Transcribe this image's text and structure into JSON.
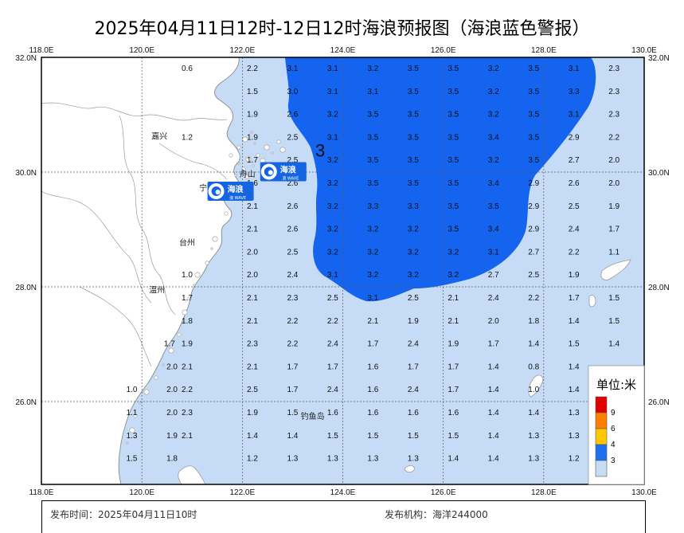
{
  "title": "2025年04月11日12时-12日12时海浪预报图（海浪蓝色警报）",
  "axes": {
    "lon_labels": [
      "118.0E",
      "120.0E",
      "122.0E",
      "124.0E",
      "126.0E",
      "128.0E",
      "130.0E"
    ],
    "lat_labels": [
      "32.0N",
      "30.0N",
      "28.0N",
      "26.0N"
    ]
  },
  "cities": [
    {
      "name": "嘉兴",
      "lon": 120.35,
      "lat": 30.63
    },
    {
      "name": "舟山",
      "lon": 122.1,
      "lat": 29.97
    },
    {
      "name": "宁波",
      "lon": 121.3,
      "lat": 29.73
    },
    {
      "name": "台州",
      "lon": 120.9,
      "lat": 28.78
    },
    {
      "name": "温州",
      "lon": 120.3,
      "lat": 27.95
    },
    {
      "name": "钓鱼岛",
      "lon": 123.4,
      "lat": 25.75
    }
  ],
  "warning_badges": [
    {
      "label": "海浪",
      "sub": "浪 WAVE",
      "lon": 122.8,
      "lat": 30.02
    },
    {
      "label": "海浪",
      "sub": "浪 WAVE",
      "lon": 121.75,
      "lat": 29.68
    }
  ],
  "contour_label": {
    "text": "3",
    "lon": 123.55,
    "lat": 30.38
  },
  "wave_values": {
    "lons": [
      120.9,
      122.2,
      123.0,
      123.8,
      124.6,
      125.4,
      126.2,
      127.0,
      127.8,
      128.6,
      129.4
    ],
    "rows": [
      {
        "lat": 31.82,
        "vals": [
          "0.6",
          "2.2",
          "3.1",
          "3.1",
          "3.2",
          "3.5",
          "3.5",
          "3.2",
          "3.5",
          "3.1",
          "2.3"
        ]
      },
      {
        "lat": 31.42,
        "vals": [
          "",
          "1.5",
          "3.0",
          "3.1",
          "3.1",
          "3.5",
          "3.5",
          "3.2",
          "3.5",
          "3.3",
          "2.3"
        ]
      },
      {
        "lat": 31.02,
        "vals": [
          "",
          "1.9",
          "2.6",
          "3.2",
          "3.5",
          "3.5",
          "3.5",
          "3.2",
          "3.5",
          "3.1",
          "2.3"
        ]
      },
      {
        "lat": 30.62,
        "vals": [
          "1.2",
          "1.9",
          "2.5",
          "3.1",
          "3.5",
          "3.5",
          "3.5",
          "3.4",
          "3.5",
          "2.9",
          "2.2"
        ]
      },
      {
        "lat": 30.22,
        "vals": [
          "",
          "1.7",
          "2.5",
          "3.2",
          "3.5",
          "3.5",
          "3.5",
          "3.2",
          "3.5",
          "2.7",
          "2.0"
        ]
      },
      {
        "lat": 29.82,
        "vals": [
          "",
          "1.6",
          "2.6",
          "3.2",
          "3.5",
          "3.5",
          "3.5",
          "3.4",
          "2.9",
          "2.6",
          "2.0"
        ]
      },
      {
        "lat": 29.42,
        "vals": [
          "",
          "2.1",
          "2.6",
          "3.2",
          "3.3",
          "3.3",
          "3.5",
          "3.5",
          "2.9",
          "2.5",
          "1.9"
        ]
      },
      {
        "lat": 29.02,
        "vals": [
          "",
          "2.1",
          "2.6",
          "3.2",
          "3.2",
          "3.2",
          "3.5",
          "3.4",
          "2.9",
          "2.4",
          "1.7"
        ]
      },
      {
        "lat": 28.62,
        "vals": [
          "",
          "2.0",
          "2.5",
          "3.2",
          "3.2",
          "3.2",
          "3.2",
          "3.1",
          "2.7",
          "2.2",
          "1.1"
        ]
      },
      {
        "lat": 28.22,
        "vals": [
          "1.0",
          "2.0",
          "2.4",
          "3.1",
          "3.2",
          "3.2",
          "3.2",
          "2.7",
          "2.5",
          "1.9",
          ""
        ]
      },
      {
        "lat": 27.82,
        "vals": [
          "1.7",
          "2.1",
          "2.3",
          "2.5",
          "3.1",
          "2.5",
          "2.1",
          "2.4",
          "2.2",
          "1.7",
          "1.5"
        ]
      },
      {
        "lat": 27.42,
        "vals": [
          "1.8",
          "2.1",
          "2.2",
          "2.2",
          "2.1",
          "1.9",
          "2.1",
          "2.0",
          "1.8",
          "1.4",
          "1.5"
        ]
      },
      {
        "lat": 27.02,
        "vals": [
          "1.9",
          "2.3",
          "2.2",
          "2.4",
          "1.7",
          "2.4",
          "1.9",
          "1.7",
          "1.4",
          "1.5",
          "1.4"
        ]
      },
      {
        "lat": 26.62,
        "vals": [
          "2.1",
          "2.1",
          "1.7",
          "1.7",
          "1.6",
          "1.7",
          "1.7",
          "1.4",
          "0.8",
          "1.4",
          ""
        ]
      },
      {
        "lat": 26.22,
        "vals": [
          "2.2",
          "2.5",
          "1.7",
          "2.4",
          "1.6",
          "2.4",
          "1.7",
          "1.4",
          "1.0",
          "1.4",
          ""
        ]
      },
      {
        "lat": 25.82,
        "vals": [
          "2.3",
          "1.9",
          "1.5",
          "1.6",
          "1.6",
          "1.6",
          "1.6",
          "1.4",
          "1.4",
          "1.3",
          ""
        ]
      },
      {
        "lat": 25.42,
        "vals": [
          "2.1",
          "1.4",
          "1.4",
          "1.5",
          "1.5",
          "1.5",
          "1.5",
          "1.4",
          "1.3",
          "1.3",
          ""
        ]
      },
      {
        "lat": 25.02,
        "vals": [
          "",
          "1.2",
          "1.3",
          "1.3",
          "1.3",
          "1.3",
          "1.4",
          "1.4",
          "1.3",
          "1.2",
          ""
        ]
      }
    ],
    "extra_left": [
      {
        "lon": 120.55,
        "lat": 27.02,
        "val": "1.7"
      },
      {
        "lon": 120.6,
        "lat": 26.62,
        "val": "2.0"
      },
      {
        "lon": 119.8,
        "lat": 26.22,
        "val": "1.0"
      },
      {
        "lon": 120.6,
        "lat": 26.22,
        "val": "2.0"
      },
      {
        "lon": 119.8,
        "lat": 25.82,
        "val": "1.1"
      },
      {
        "lon": 120.6,
        "lat": 25.82,
        "val": "2.0"
      },
      {
        "lon": 119.8,
        "lat": 25.42,
        "val": "1.3"
      },
      {
        "lon": 120.6,
        "lat": 25.42,
        "val": "1.9"
      },
      {
        "lon": 119.8,
        "lat": 25.02,
        "val": "1.5"
      },
      {
        "lon": 120.6,
        "lat": 25.02,
        "val": "1.8"
      }
    ]
  },
  "legend": {
    "title": "单位:米",
    "levels": [
      {
        "label": "9",
        "color": "#e00000"
      },
      {
        "label": "6",
        "color": "#ff7f00"
      },
      {
        "label": "4",
        "color": "#ffc800"
      },
      {
        "label": "3",
        "color": "#1e6ef0"
      },
      {
        "label": "",
        "color": "#c6dcf6"
      }
    ]
  },
  "colors": {
    "sea": "#c6dcf6",
    "warning_zone": "#1464f0",
    "land": "#ffffff",
    "border": "#888888"
  },
  "footer": {
    "left": "发布时间：2025年04月11日10时",
    "right": "发布机构：海洋244000"
  }
}
